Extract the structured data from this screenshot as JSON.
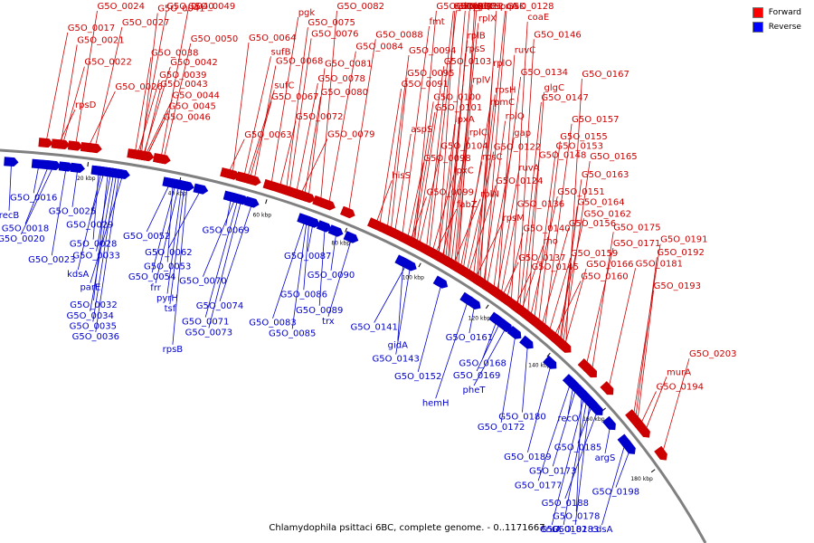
{
  "caption": "Chlamydophila psittaci 6BC, complete genome. - 0..1171667",
  "legend": [
    {
      "label": "Forward",
      "color": "#ff0000"
    },
    {
      "label": "Reverse",
      "color": "#0000ff"
    }
  ],
  "colors": {
    "forward": "#cc0000",
    "reverse": "#0000cc",
    "backbone": "#808080"
  },
  "ticks": [
    "20 kbp",
    "40 kbp",
    "60 kbp",
    "80 kbp",
    "100 kbp",
    "120 kbp",
    "140 kbp",
    "160 kbp",
    "180 kbp"
  ],
  "forward_labels": [
    {
      "text": "G5O_0046",
      "t": 0.15
    },
    {
      "text": "G5O_0045",
      "t": 0.15
    },
    {
      "text": "G5O_0044",
      "t": 0.148
    },
    {
      "text": "G5O_0043",
      "t": 0.147
    },
    {
      "text": "G5O_0022",
      "t": 0.062
    },
    {
      "text": "G5O_0042",
      "t": 0.146
    },
    {
      "text": "G5O_0021",
      "t": 0.06
    },
    {
      "text": "G5O_0017",
      "t": 0.045
    },
    {
      "text": "G5O_0027",
      "t": 0.095
    },
    {
      "text": "G5O_0041",
      "t": 0.144
    },
    {
      "text": "G5O_0024",
      "t": 0.075
    },
    {
      "text": "G5O_0040",
      "t": 0.142
    },
    {
      "text": "rpsD",
      "t": 0.058
    },
    {
      "text": "G5O_0039",
      "t": 0.14
    },
    {
      "text": "G5O_0026",
      "t": 0.088
    },
    {
      "text": "G5O_0038",
      "t": 0.137
    },
    {
      "text": "G5O_0067",
      "t": 0.265
    },
    {
      "text": "sufC",
      "t": 0.262
    },
    {
      "text": "G5O_0080",
      "t": 0.33
    },
    {
      "text": "G5O_0078",
      "t": 0.32
    },
    {
      "text": "sufB",
      "t": 0.258
    },
    {
      "text": "lpxA",
      "t": 0.505
    },
    {
      "text": "G5O_0076",
      "t": 0.312
    },
    {
      "text": "G5O_0049",
      "t": 0.165
    },
    {
      "text": "G5O_0063",
      "t": 0.24
    },
    {
      "text": "fabZ",
      "t": 0.5
    },
    {
      "text": "G5O_0050",
      "t": 0.168
    },
    {
      "text": "G5O_0072",
      "t": 0.3
    },
    {
      "text": "lpxC",
      "t": 0.496
    },
    {
      "text": "G5O_0124",
      "t": 0.548
    },
    {
      "text": "G5O_0081",
      "t": 0.335
    },
    {
      "text": "G5O_0101",
      "t": 0.47
    },
    {
      "text": "G5O_0122",
      "t": 0.545
    },
    {
      "text": "G5O_0064",
      "t": 0.245
    },
    {
      "text": "G5O_0075",
      "t": 0.308
    },
    {
      "text": "rpmC",
      "t": 0.54
    },
    {
      "text": "G5O_0099",
      "t": 0.466
    },
    {
      "text": "G5O_0068",
      "t": 0.27
    },
    {
      "text": "G5O_0079",
      "t": 0.325
    },
    {
      "text": "G5O_0098",
      "t": 0.462
    },
    {
      "text": "rpsC",
      "t": 0.536
    },
    {
      "text": "pgk",
      "t": 0.29
    },
    {
      "text": "aspS",
      "t": 0.445
    },
    {
      "text": "G5O_0100",
      "t": 0.468
    },
    {
      "text": "rplC",
      "t": 0.51
    },
    {
      "text": "rplV",
      "t": 0.53
    },
    {
      "text": "rpsH",
      "t": 0.555
    },
    {
      "text": "G5O_0084",
      "t": 0.36
    },
    {
      "text": "hisS",
      "t": 0.42
    },
    {
      "text": "G5O_0104",
      "t": 0.478
    },
    {
      "text": "rplN",
      "t": 0.526
    },
    {
      "text": "G5O_0082",
      "t": 0.35
    },
    {
      "text": "G5O_0091",
      "t": 0.425
    },
    {
      "text": "G5O_0103",
      "t": 0.475
    },
    {
      "text": "rpsS",
      "t": 0.52
    },
    {
      "text": "rplB",
      "t": 0.515
    },
    {
      "text": "rplX",
      "t": 0.523
    },
    {
      "text": "rplO",
      "t": 0.56
    },
    {
      "text": "rplQ",
      "t": 0.57
    },
    {
      "text": "G5O_0088",
      "t": 0.385
    },
    {
      "text": "G5O_0095",
      "t": 0.44
    },
    {
      "text": "G5O_0094",
      "t": 0.435
    },
    {
      "text": "G5O_0109",
      "t": 0.488
    },
    {
      "text": "rplR",
      "t": 0.533
    },
    {
      "text": "G5O_0102",
      "t": 0.472
    },
    {
      "text": "G5O_0112",
      "t": 0.492
    },
    {
      "text": "rpoA",
      "t": 0.565
    },
    {
      "text": "ruvA",
      "t": 0.59
    },
    {
      "text": "fmt",
      "t": 0.455
    },
    {
      "text": "rplD",
      "t": 0.505
    },
    {
      "text": "rpsQ",
      "t": 0.518
    },
    {
      "text": "rpsK",
      "t": 0.562
    },
    {
      "text": "G5O_0137",
      "t": 0.598
    },
    {
      "text": "rplP",
      "t": 0.512
    },
    {
      "text": "rpsM",
      "t": 0.558
    },
    {
      "text": "G5O_0136",
      "t": 0.596
    },
    {
      "text": "rpsE",
      "t": 0.528
    },
    {
      "text": "gap",
      "t": 0.575
    },
    {
      "text": "ruvC",
      "t": 0.592
    },
    {
      "text": "G5O_0128",
      "t": 0.572
    },
    {
      "text": "G5O_0151",
      "t": 0.642
    },
    {
      "text": "G5O_0148",
      "t": 0.63
    },
    {
      "text": "G5O_0163",
      "t": 0.69
    },
    {
      "text": "G5O_0134",
      "t": 0.585
    },
    {
      "text": "G5O_0145",
      "t": 0.618
    },
    {
      "text": "rho",
      "t": 0.628
    },
    {
      "text": "G5O_0160",
      "t": 0.68
    },
    {
      "text": "G5O_0140",
      "t": 0.605
    },
    {
      "text": "G5O_0147",
      "t": 0.625
    },
    {
      "text": "G5O_0156",
      "t": 0.66
    },
    {
      "text": "G5O_0146",
      "t": 0.622
    },
    {
      "text": "G5O_0153",
      "t": 0.648
    },
    {
      "text": "G5O_0162",
      "t": 0.685
    },
    {
      "text": "coaE",
      "t": 0.612
    },
    {
      "text": "G5O_0155",
      "t": 0.655
    },
    {
      "text": "G5O_0165",
      "t": 0.695
    },
    {
      "text": "glgC",
      "t": 0.638
    },
    {
      "text": "G5O_0159",
      "t": 0.672
    },
    {
      "text": "G5O_0157",
      "t": 0.665
    },
    {
      "text": "G5O_0164",
      "t": 0.692
    },
    {
      "text": "G5O_0166",
      "t": 0.698
    },
    {
      "text": "G5O_0171",
      "t": 0.735
    },
    {
      "text": "G5O_0167",
      "t": 0.7
    },
    {
      "text": "G5O_0175",
      "t": 0.745
    },
    {
      "text": "G5O_0181",
      "t": 0.775
    },
    {
      "text": "G5O_0193",
      "t": 0.83
    },
    {
      "text": "G5O_0192",
      "t": 0.826
    },
    {
      "text": "G5O_0191",
      "t": 0.822
    },
    {
      "text": "G5O_0194",
      "t": 0.835
    },
    {
      "text": "murA",
      "t": 0.845
    },
    {
      "text": "G5O_0203",
      "t": 0.88
    }
  ],
  "reverse_labels": [
    {
      "text": "G5O_0016",
      "t": 0.04
    },
    {
      "text": "recB",
      "t": 0.012
    },
    {
      "text": "G5O_0018",
      "t": 0.05
    },
    {
      "text": "G5O_0020",
      "t": 0.055
    },
    {
      "text": "G5O_0028",
      "t": 0.102
    },
    {
      "text": "G5O_0023",
      "t": 0.068
    },
    {
      "text": "kdsA",
      "t": 0.105
    },
    {
      "text": "parE",
      "t": 0.128
    },
    {
      "text": "G5O_0025",
      "t": 0.08
    },
    {
      "text": "G5O_0029",
      "t": 0.108
    },
    {
      "text": "G5O_0052",
      "t": 0.18
    },
    {
      "text": "G5O_0062",
      "t": 0.215
    },
    {
      "text": "G5O_0053",
      "t": 0.183
    },
    {
      "text": "G5O_0032",
      "t": 0.112
    },
    {
      "text": "G5O_0054",
      "t": 0.186
    },
    {
      "text": "G5O_0074",
      "t": 0.275
    },
    {
      "text": "G5O_0069",
      "t": 0.25
    },
    {
      "text": "G5O_0033",
      "t": 0.115
    },
    {
      "text": "frr",
      "t": 0.19
    },
    {
      "text": "G5O_0070",
      "t": 0.255
    },
    {
      "text": "G5O_0086",
      "t": 0.345
    },
    {
      "text": "pyrH",
      "t": 0.193
    },
    {
      "text": "G5O_0034",
      "t": 0.118
    },
    {
      "text": "G5O_0071",
      "t": 0.258
    },
    {
      "text": "G5O_0087",
      "t": 0.35
    },
    {
      "text": "tsf",
      "t": 0.196
    },
    {
      "text": "G5O_0035",
      "t": 0.121
    },
    {
      "text": "G5O_0073",
      "t": 0.262
    },
    {
      "text": "G5O_0089",
      "t": 0.365
    },
    {
      "text": "rpsB",
      "t": 0.199
    },
    {
      "text": "G5O_0036",
      "t": 0.124
    },
    {
      "text": "G5O_0083",
      "t": 0.34
    },
    {
      "text": "G5O_0090",
      "t": 0.38
    },
    {
      "text": "G5O_0085",
      "t": 0.342
    },
    {
      "text": "trx",
      "t": 0.4
    },
    {
      "text": "G5O_0141",
      "t": 0.475
    },
    {
      "text": "gidA",
      "t": 0.47
    },
    {
      "text": "G5O_0143",
      "t": 0.48
    },
    {
      "text": "G5O_0152",
      "t": 0.525
    },
    {
      "text": "hemH",
      "t": 0.565
    },
    {
      "text": "G5O_0161",
      "t": 0.575
    },
    {
      "text": "G5O_0168",
      "t": 0.61
    },
    {
      "text": "G5O_0169",
      "t": 0.615
    },
    {
      "text": "pheT",
      "t": 0.625
    },
    {
      "text": "G5O_0180",
      "t": 0.66
    },
    {
      "text": "G5O_0172",
      "t": 0.64
    },
    {
      "text": "G5O_0189",
      "t": 0.7
    },
    {
      "text": "G5O_0177",
      "t": 0.735
    },
    {
      "text": "recO",
      "t": 0.74
    },
    {
      "text": "G5O_0185",
      "t": 0.775
    },
    {
      "text": "G5O_0173",
      "t": 0.745
    },
    {
      "text": "G5O_0188",
      "t": 0.785
    },
    {
      "text": "G5O_0178",
      "t": 0.755
    },
    {
      "text": "G5O_0183",
      "t": 0.77
    },
    {
      "text": "G5O_0182",
      "t": 0.765
    },
    {
      "text": "truA",
      "t": 0.76
    },
    {
      "text": "argS",
      "t": 0.81
    },
    {
      "text": "G5O_0198",
      "t": 0.85
    },
    {
      "text": "cdsA",
      "t": 0.84
    }
  ]
}
